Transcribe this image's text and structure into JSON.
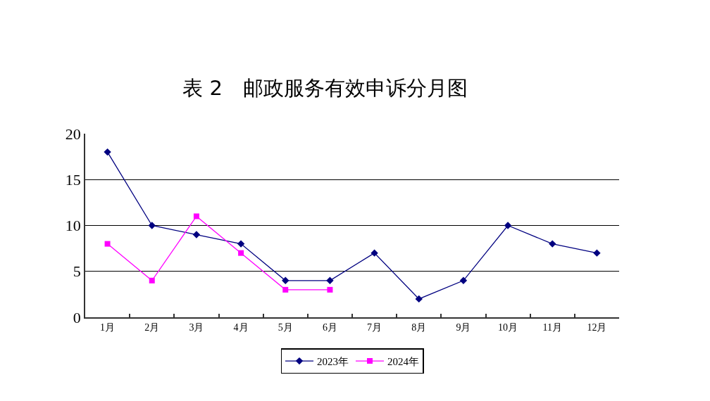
{
  "chart_data": {
    "type": "line",
    "title": "表 2　邮政服务有效申诉分月图",
    "categories": [
      "1月",
      "2月",
      "3月",
      "4月",
      "5月",
      "6月",
      "7月",
      "8月",
      "9月",
      "10月",
      "11月",
      "12月"
    ],
    "series": [
      {
        "name": "2023年",
        "color": "#000080",
        "marker": "diamond",
        "values": [
          18,
          10,
          9,
          8,
          4,
          4,
          7,
          2,
          4,
          10,
          8,
          7
        ]
      },
      {
        "name": "2024年",
        "color": "#ff00ff",
        "marker": "square",
        "values": [
          8,
          4,
          11,
          7,
          3,
          3,
          null,
          null,
          null,
          null,
          null,
          null
        ]
      }
    ],
    "ylim": [
      0,
      20
    ],
    "yticks": [
      0,
      5,
      10,
      15,
      20
    ],
    "grid": "y",
    "legend": "bottom",
    "line_style": "solid"
  }
}
